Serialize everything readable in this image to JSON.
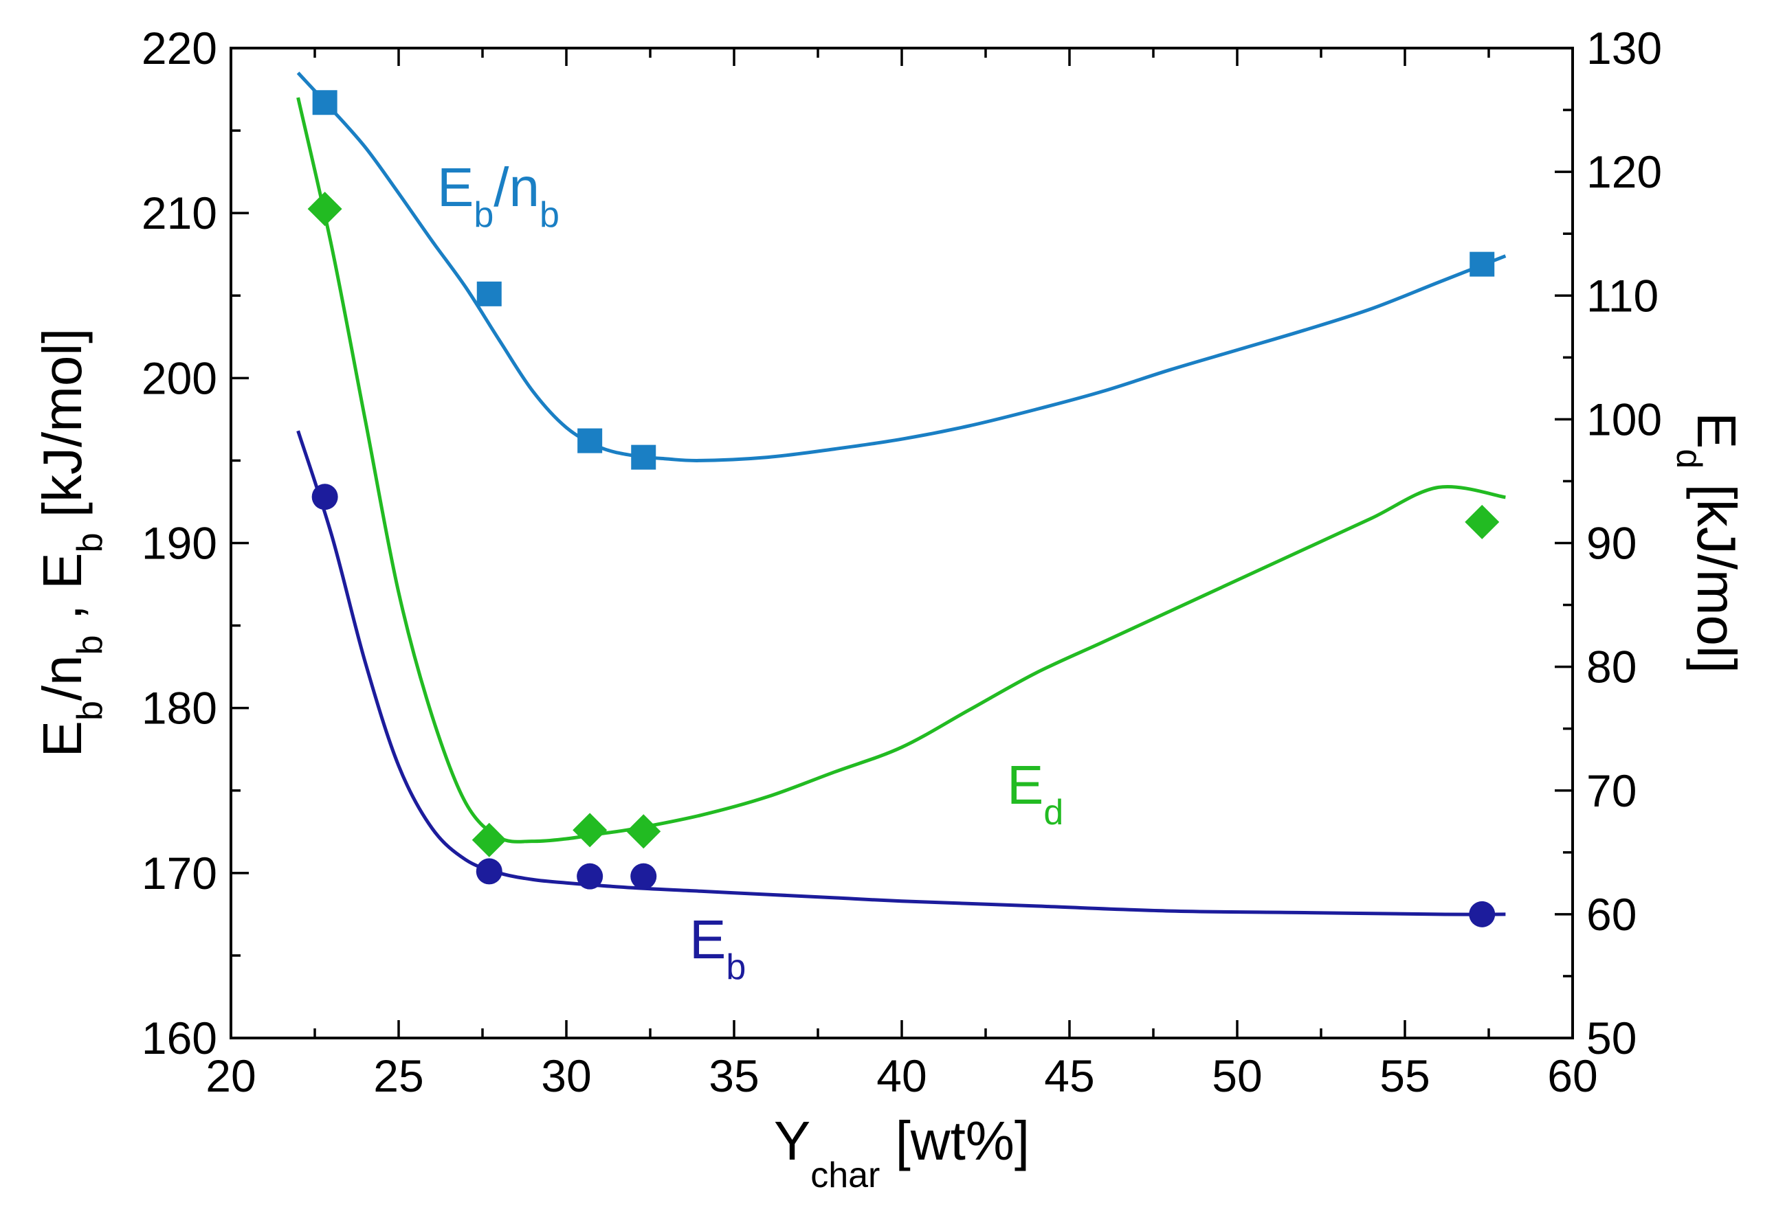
{
  "chart_data": {
    "type": "scatter",
    "x_axis": {
      "label_main": "Y",
      "label_sub": "char",
      "label_unit": " [wt%]",
      "range": [
        20,
        60
      ],
      "ticks": [
        "20",
        "25",
        "30",
        "35",
        "40",
        "45",
        "50",
        "55",
        "60"
      ],
      "tick_values": [
        20,
        25,
        30,
        35,
        40,
        45,
        50,
        55,
        60
      ]
    },
    "y_left_axis": {
      "label_parts": [
        {
          "t": "E",
          "sub": false
        },
        {
          "t": "b",
          "sub": true
        },
        {
          "t": "/n",
          "sub": false
        },
        {
          "t": "b",
          "sub": true
        },
        {
          "t": " , E",
          "sub": false
        },
        {
          "t": "b",
          "sub": true
        },
        {
          "t": "   [kJ/mol]",
          "sub": false
        }
      ],
      "range": [
        160,
        220
      ],
      "ticks": [
        "160",
        "170",
        "180",
        "190",
        "200",
        "210",
        "220"
      ],
      "tick_values": [
        160,
        170,
        180,
        190,
        200,
        210,
        220
      ]
    },
    "y_right_axis": {
      "label_parts": [
        {
          "t": "E",
          "sub": false
        },
        {
          "t": "d",
          "sub": true
        },
        {
          "t": " [kJ/mol]",
          "sub": false
        }
      ],
      "range": [
        50,
        130
      ],
      "ticks": [
        "50",
        "60",
        "70",
        "80",
        "90",
        "100",
        "110",
        "120",
        "130"
      ],
      "tick_values": [
        50,
        60,
        70,
        80,
        90,
        100,
        110,
        120,
        130
      ]
    },
    "series": [
      {
        "name": "Eb/nb",
        "label_main": "E",
        "label_sub1": "b",
        "label_mid": "/n",
        "label_sub2": "b",
        "axis": "left",
        "marker": "square",
        "color": "#1a7fc4",
        "x": [
          22.8,
          27.7,
          30.7,
          32.3,
          57.3
        ],
        "y": [
          216.7,
          205.1,
          196.2,
          195.2,
          206.9
        ],
        "fit_x": [
          22.0,
          23.0,
          24.0,
          25.0,
          26.0,
          27.0,
          28.0,
          29.0,
          30.0,
          31.0,
          32.0,
          33.0,
          34.0,
          36.0,
          38.0,
          40.0,
          42.0,
          44.0,
          46.0,
          48.0,
          50.0,
          52.0,
          54.0,
          56.0,
          58.0
        ],
        "fit_y": [
          218.5,
          216.3,
          214.0,
          211.2,
          208.3,
          205.5,
          202.3,
          199.2,
          197.0,
          195.8,
          195.3,
          195.1,
          195.0,
          195.2,
          195.7,
          196.3,
          197.1,
          198.1,
          199.2,
          200.5,
          201.7,
          202.9,
          204.2,
          205.8,
          207.4
        ]
      },
      {
        "name": "Ed",
        "label_main": "E",
        "label_sub1": "d",
        "axis": "right",
        "marker": "diamond",
        "color": "#22bb22",
        "x": [
          22.8,
          27.7,
          30.7,
          32.3,
          57.3
        ],
        "y": [
          117.0,
          66.0,
          66.8,
          66.7,
          91.7
        ],
        "fit_x": [
          22.0,
          23.0,
          24.0,
          25.0,
          26.0,
          27.0,
          28.0,
          29.0,
          30.0,
          31.0,
          32.0,
          34.0,
          36.0,
          38.0,
          40.0,
          42.0,
          44.0,
          46.0,
          48.0,
          50.0,
          52.0,
          54.0,
          56.0,
          58.0
        ],
        "fit_y": [
          126.0,
          114.0,
          100.0,
          86.0,
          76.0,
          69.0,
          66.2,
          65.9,
          66.1,
          66.5,
          66.9,
          68.0,
          69.5,
          71.5,
          73.5,
          76.5,
          79.5,
          82.0,
          84.5,
          87.0,
          89.5,
          92.0,
          94.5,
          93.7
        ]
      },
      {
        "name": "Eb",
        "label_main": "E",
        "label_sub1": "b",
        "axis": "left",
        "marker": "circle",
        "color": "#1c1c9c",
        "x": [
          22.8,
          27.7,
          30.7,
          32.3,
          57.3
        ],
        "y": [
          192.8,
          170.1,
          169.8,
          169.8,
          167.5
        ],
        "fit_x": [
          22.0,
          23.0,
          24.0,
          25.0,
          26.0,
          27.0,
          28.0,
          29.0,
          30.0,
          32.0,
          34.0,
          36.0,
          38.0,
          40.0,
          44.0,
          48.0,
          52.0,
          56.0,
          58.0
        ],
        "fit_y": [
          196.8,
          190.5,
          182.8,
          176.5,
          172.7,
          170.8,
          170.0,
          169.6,
          169.4,
          169.1,
          168.9,
          168.7,
          168.5,
          168.3,
          168.0,
          167.7,
          167.6,
          167.5,
          167.5
        ]
      }
    ]
  }
}
